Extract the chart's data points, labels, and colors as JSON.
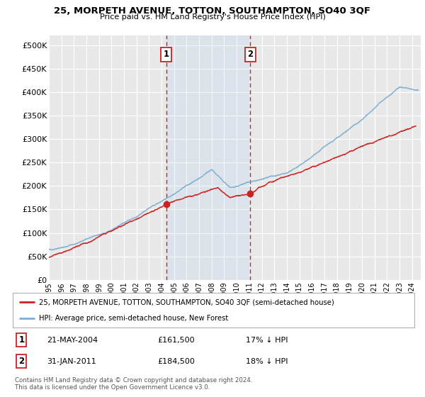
{
  "title": "25, MORPETH AVENUE, TOTTON, SOUTHAMPTON, SO40 3QF",
  "subtitle": "Price paid vs. HM Land Registry's House Price Index (HPI)",
  "ylabel_ticks": [
    "£0",
    "£50K",
    "£100K",
    "£150K",
    "£200K",
    "£250K",
    "£300K",
    "£350K",
    "£400K",
    "£450K",
    "£500K"
  ],
  "ytick_values": [
    0,
    50000,
    100000,
    150000,
    200000,
    250000,
    300000,
    350000,
    400000,
    450000,
    500000
  ],
  "ylim": [
    0,
    520000
  ],
  "xlim_start": 1995.0,
  "xlim_end": 2024.7,
  "background_color": "#ffffff",
  "plot_bg_color": "#e8e8e8",
  "grid_color": "#ffffff",
  "hpi_color": "#7bafd4",
  "price_color": "#cc2222",
  "sale1_year": 2004.38,
  "sale2_year": 2011.08,
  "legend_property": "25, MORPETH AVENUE, TOTTON, SOUTHAMPTON, SO40 3QF (semi-detached house)",
  "legend_hpi": "HPI: Average price, semi-detached house, New Forest",
  "footnote": "Contains HM Land Registry data © Crown copyright and database right 2024.\nThis data is licensed under the Open Government Licence v3.0."
}
